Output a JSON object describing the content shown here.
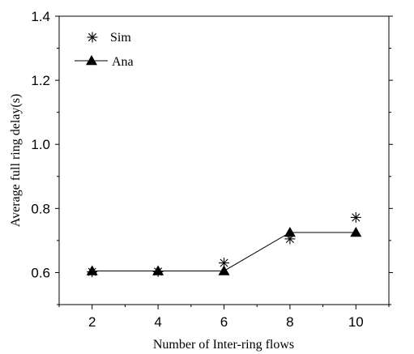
{
  "chart_data": {
    "type": "line",
    "xlabel": "Number of Inter-ring flows",
    "ylabel": "Average full ring delay(s)",
    "x_ticks": [
      2,
      4,
      6,
      8,
      10
    ],
    "y_ticks": [
      0.6,
      0.8,
      1.0,
      1.2,
      1.4
    ],
    "y_tick_labels": [
      "0.6",
      "0.8",
      "1.0",
      "1.2",
      "1.4"
    ],
    "xlim": [
      1,
      11
    ],
    "ylim": [
      0.5,
      1.4
    ],
    "legend_position": "top-left",
    "series": [
      {
        "name": "Sim",
        "marker": "asterisk",
        "line": false,
        "x": [
          2,
          4,
          6,
          8,
          10
        ],
        "y": [
          0.602,
          0.603,
          0.63,
          0.705,
          0.772
        ]
      },
      {
        "name": "Ana",
        "marker": "filled-triangle",
        "line": true,
        "x": [
          2,
          4,
          6,
          8,
          10
        ],
        "y": [
          0.605,
          0.605,
          0.605,
          0.725,
          0.725
        ]
      }
    ]
  }
}
